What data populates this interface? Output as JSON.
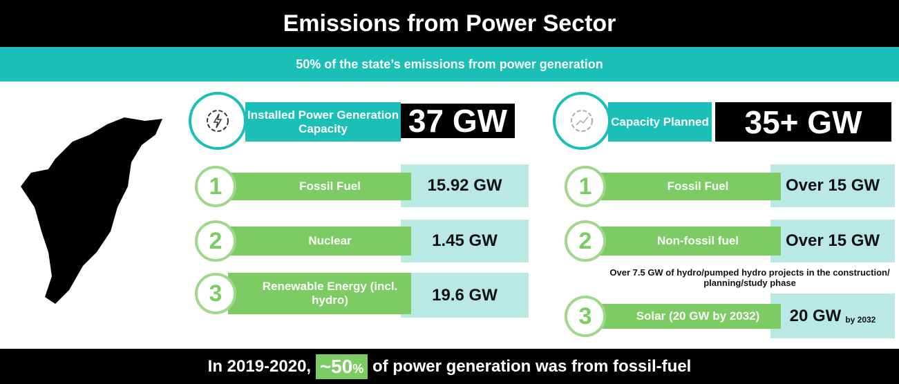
{
  "header": {
    "title": "Emissions from Power Sector",
    "subtitle": "50% of the state’s emissions from power generation"
  },
  "installed": {
    "label": "Installed Power Generation Capacity",
    "value": "37 GW",
    "items": [
      {
        "number": "1",
        "label": "Fossil Fuel",
        "value": "15.92 GW"
      },
      {
        "number": "2",
        "label": "Nuclear",
        "value": "1.45 GW"
      },
      {
        "number": "3",
        "label": "Renewable Energy (incl. hydro)",
        "value": "19.6 GW"
      }
    ]
  },
  "planned": {
    "label": "Capacity Planned",
    "value": "35+ GW",
    "items": [
      {
        "number": "1",
        "label": "Fossil Fuel",
        "value": "Over 15 GW"
      },
      {
        "number": "2",
        "label": "Non-fossil fuel",
        "value": "Over 15 GW"
      },
      {
        "number": "3",
        "label": "Solar (20 GW by 2032)",
        "value": "20 GW",
        "suffix": "by 2032"
      }
    ],
    "note": "Over 7.5 GW of hydro/pumped hydro projects in the construction/ planning/study phase"
  },
  "footer": {
    "prefix": "In 2019-2020,",
    "highlight": "~50",
    "unit": "%",
    "suffix": "of power generation was from fossil-fuel"
  }
}
